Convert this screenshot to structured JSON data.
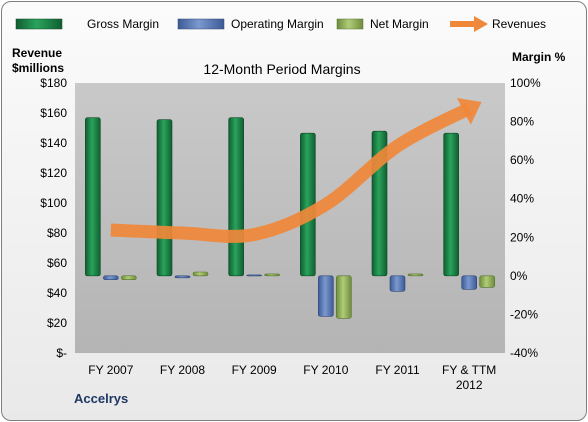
{
  "colors": {
    "gross_margin": "#1e8a4a",
    "operating_margin": "#5878b8",
    "net_margin": "#93b35a",
    "revenues": "#f0883a",
    "plot_bg": "#c8c8c8"
  },
  "chart_data": {
    "type": "bar",
    "title": "12-Month Period Margins",
    "categories": [
      "FY 2007",
      "FY 2008",
      "FY 2009",
      "FY 2010",
      "FY 2011",
      "FY & TTM 2012"
    ],
    "series": [
      {
        "name": "Gross Margin",
        "axis": "right",
        "values": [
          82,
          81,
          82,
          74,
          75,
          74
        ]
      },
      {
        "name": "Operating Margin",
        "axis": "right",
        "values": [
          -2,
          -1,
          0.5,
          -21,
          -8,
          -7
        ]
      },
      {
        "name": "Net Margin",
        "axis": "right",
        "values": [
          -2,
          2,
          1,
          -22,
          1,
          -6
        ]
      },
      {
        "name": "Revenues",
        "axis": "left",
        "type": "line",
        "values": [
          82,
          80,
          79,
          99,
          138,
          163
        ]
      }
    ],
    "left_axis": {
      "label_lines": [
        "Revenue",
        "$millions"
      ],
      "ylim": [
        0,
        180
      ],
      "ticks": [
        "$-",
        "$20",
        "$40",
        "$60",
        "$80",
        "$100",
        "$120",
        "$140",
        "$160",
        "$180"
      ]
    },
    "right_axis": {
      "label": "Margin %",
      "ylim": [
        -40,
        100
      ],
      "ticks": [
        "-40%",
        "-20%",
        "0%",
        "20%",
        "40%",
        "60%",
        "80%",
        "100%"
      ]
    },
    "legend_position": "top",
    "grid": false,
    "footer": "Accelrys"
  }
}
